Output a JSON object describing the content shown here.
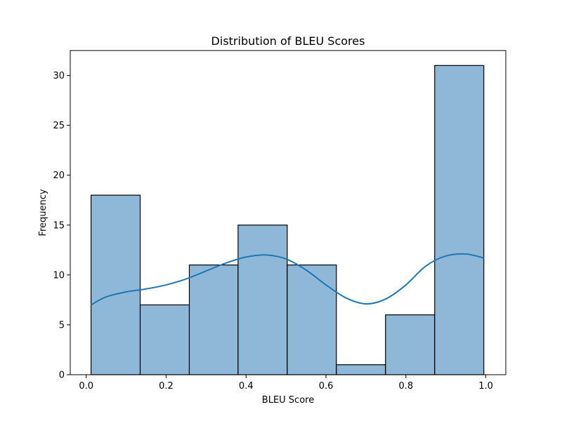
{
  "chart_data": {
    "type": "histogram",
    "title": "Distribution of BLEU Scores",
    "xlabel": "BLEU Score",
    "ylabel": "Frequency",
    "xlim": [
      -0.04,
      1.05
    ],
    "ylim": [
      0,
      32.5
    ],
    "xticks": [
      0.0,
      0.2,
      0.4,
      0.6,
      0.8,
      1.0
    ],
    "xtick_labels": [
      "0.0",
      "0.2",
      "0.4",
      "0.6",
      "0.8",
      "1.0"
    ],
    "yticks": [
      0,
      5,
      10,
      15,
      20,
      25,
      30
    ],
    "ytick_labels": [
      "0",
      "5",
      "10",
      "15",
      "20",
      "25",
      "30"
    ],
    "bins": [
      {
        "x0": 0.012,
        "x1": 0.135,
        "count": 18
      },
      {
        "x0": 0.135,
        "x1": 0.258,
        "count": 7
      },
      {
        "x0": 0.258,
        "x1": 0.38,
        "count": 11
      },
      {
        "x0": 0.38,
        "x1": 0.503,
        "count": 15
      },
      {
        "x0": 0.503,
        "x1": 0.626,
        "count": 11
      },
      {
        "x0": 0.626,
        "x1": 0.749,
        "count": 1
      },
      {
        "x0": 0.749,
        "x1": 0.872,
        "count": 6
      },
      {
        "x0": 0.872,
        "x1": 0.995,
        "count": 31
      }
    ],
    "kde": {
      "x": [
        0.012,
        0.05,
        0.1,
        0.15,
        0.2,
        0.25,
        0.3,
        0.35,
        0.4,
        0.45,
        0.5,
        0.55,
        0.6,
        0.65,
        0.7,
        0.75,
        0.8,
        0.85,
        0.9,
        0.95,
        0.995
      ],
      "y": [
        7.0,
        7.8,
        8.3,
        8.6,
        9.0,
        9.6,
        10.4,
        11.2,
        11.8,
        12.0,
        11.6,
        10.5,
        9.0,
        7.7,
        7.1,
        7.6,
        9.0,
        10.9,
        11.9,
        12.1,
        11.7
      ]
    },
    "colors": {
      "bar_fill": "#8fb8d8",
      "bar_edge": "#000000",
      "kde_line": "#1f77b4"
    },
    "grid": false
  }
}
